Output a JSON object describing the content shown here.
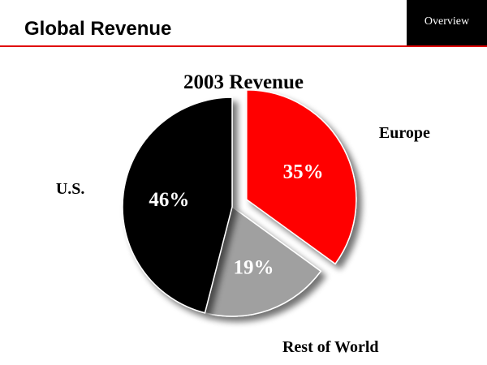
{
  "header": {
    "title": "Global Revenue",
    "section_tab": "Overview",
    "rule_color": "#e00000"
  },
  "chart_data": {
    "type": "pie",
    "title": "2003 Revenue",
    "slices": [
      {
        "label": "Europe",
        "value": 35,
        "value_label": "35%",
        "color": "#ff0000",
        "exploded": true
      },
      {
        "label": "Rest of World",
        "value": 19,
        "value_label": "19%",
        "color": "#a0a0a0",
        "exploded": false
      },
      {
        "label": "U.S.",
        "value": 46,
        "value_label": "46%",
        "color": "#000000",
        "exploded": false
      }
    ],
    "start_angle": "12 o'clock",
    "direction": "clockwise",
    "legend": "none",
    "labels_outside": true
  }
}
